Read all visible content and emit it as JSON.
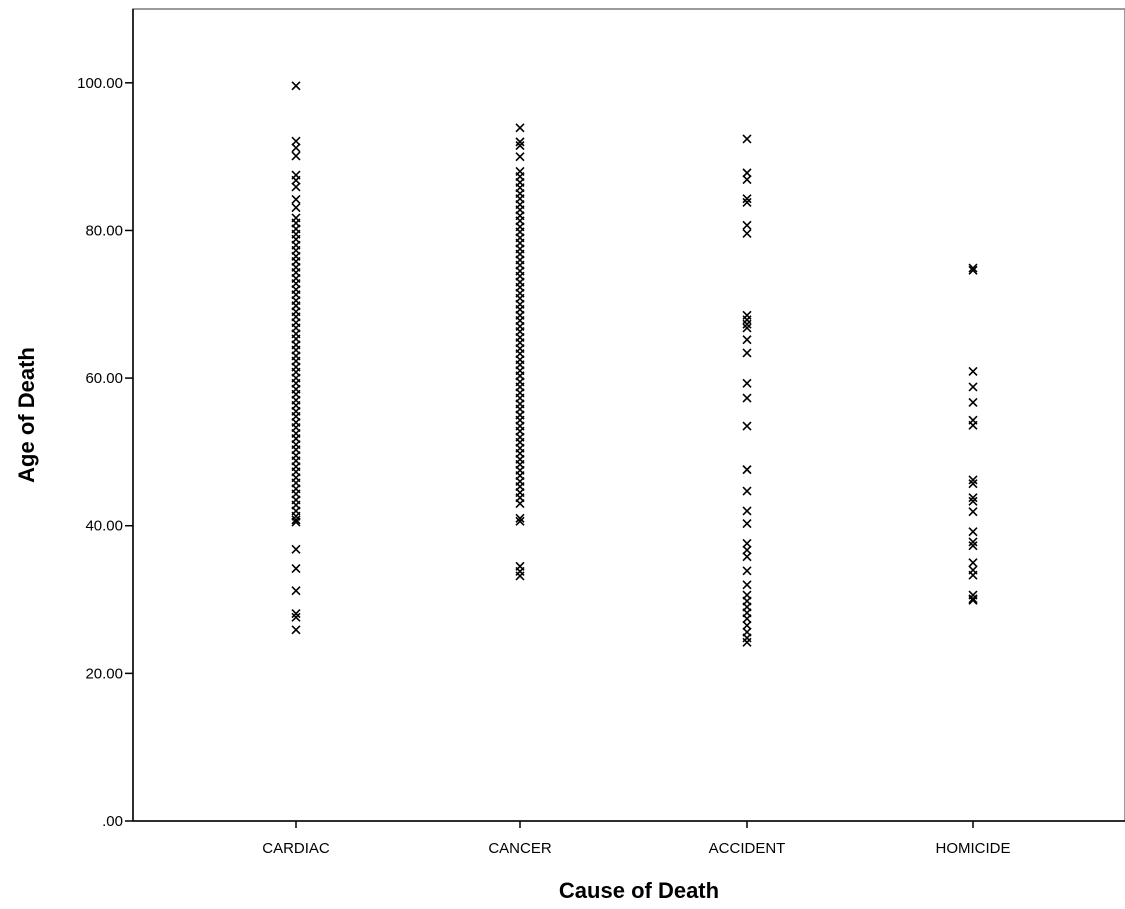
{
  "chart_data": {
    "type": "scatter",
    "xlabel": "Cause of Death",
    "ylabel": "Age of Death",
    "categories": [
      "CARDIAC",
      "CANCER",
      "ACCIDENT",
      "HOMICIDE"
    ],
    "ylim": [
      0,
      110
    ],
    "yticks": [
      0,
      20,
      40,
      60,
      80,
      100
    ],
    "ytick_labels": [
      ".00",
      "20.00",
      "40.00",
      "60.00",
      "80.00",
      "100.00"
    ],
    "grid": false,
    "marker": "x",
    "marker_color": "#000000",
    "series": [
      {
        "category": "CARDIAC",
        "values": [
          99.6,
          92.1,
          91.2,
          90.1,
          87.5,
          86.8,
          85.9,
          84.2,
          83.1,
          81.7,
          81.0,
          80.2,
          79.5,
          78.8,
          78.0,
          77.3,
          76.5,
          75.8,
          75.0,
          74.3,
          73.5,
          72.8,
          72.0,
          71.3,
          70.5,
          69.8,
          69.0,
          68.3,
          67.5,
          66.8,
          66.0,
          65.3,
          64.5,
          63.8,
          63.0,
          62.3,
          61.5,
          60.8,
          60.0,
          59.3,
          58.5,
          57.8,
          57.0,
          56.3,
          55.5,
          54.8,
          54.0,
          53.3,
          52.5,
          51.8,
          51.0,
          50.3,
          49.5,
          48.8,
          48.0,
          47.3,
          46.5,
          45.8,
          45.0,
          44.3,
          43.5,
          42.8,
          42.0,
          41.3,
          40.8,
          40.5,
          36.8,
          34.2,
          31.2,
          28.1,
          27.6,
          25.9
        ]
      },
      {
        "category": "CANCER",
        "values": [
          93.9,
          92.0,
          91.5,
          90.0,
          88.0,
          87.3,
          86.5,
          85.8,
          85.0,
          84.3,
          83.5,
          82.8,
          82.0,
          81.3,
          80.5,
          79.8,
          79.0,
          78.3,
          77.5,
          76.8,
          76.0,
          75.3,
          74.5,
          73.8,
          73.0,
          72.3,
          71.5,
          70.8,
          70.0,
          69.3,
          68.5,
          67.8,
          67.0,
          66.3,
          65.5,
          64.8,
          64.0,
          63.3,
          62.5,
          61.8,
          61.0,
          60.3,
          59.5,
          58.8,
          58.0,
          57.3,
          56.5,
          55.8,
          55.0,
          54.3,
          53.5,
          52.8,
          52.0,
          51.3,
          50.5,
          49.8,
          49.0,
          48.3,
          47.5,
          46.8,
          46.0,
          45.3,
          44.5,
          43.8,
          43.0,
          41.0,
          40.6,
          34.5,
          33.8,
          33.2
        ]
      },
      {
        "category": "ACCIDENT",
        "values": [
          92.4,
          87.8,
          86.9,
          84.3,
          83.8,
          80.7,
          79.6,
          68.5,
          67.9,
          67.3,
          66.8,
          65.2,
          63.4,
          59.3,
          57.3,
          53.5,
          47.6,
          44.7,
          42.0,
          40.3,
          37.6,
          36.7,
          35.8,
          33.9,
          32.0,
          30.6,
          29.8,
          29.0,
          28.2,
          27.4,
          26.5,
          25.6,
          24.8,
          24.2
        ]
      },
      {
        "category": "HOMICIDE",
        "values": [
          74.9,
          74.6,
          60.9,
          58.8,
          56.7,
          54.3,
          53.6,
          46.2,
          45.7,
          43.8,
          43.3,
          41.9,
          39.2,
          37.8,
          37.3,
          35.0,
          34.0,
          33.3,
          30.6,
          30.1,
          29.9
        ]
      }
    ]
  }
}
